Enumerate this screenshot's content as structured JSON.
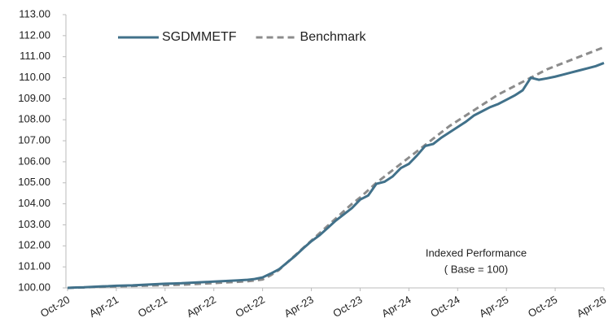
{
  "chart_data": {
    "type": "line",
    "annotation": [
      "Indexed Performance",
      "( Base = 100)"
    ],
    "legend": "upper left",
    "categories": [
      "Oct-20",
      null,
      null,
      null,
      null,
      null,
      "Apr-21",
      null,
      null,
      null,
      null,
      null,
      "Oct-21",
      null,
      null,
      null,
      null,
      null,
      "Apr-22",
      null,
      null,
      null,
      null,
      null,
      "Oct-22",
      null,
      null,
      null,
      null,
      null,
      "Apr-23",
      null,
      null,
      null,
      null,
      null,
      "Oct-23",
      null,
      null,
      null,
      null,
      null,
      "Apr-24",
      null,
      null,
      null,
      null,
      null,
      "Oct-24",
      null,
      null,
      null,
      null,
      null,
      "Apr-25",
      null,
      null,
      null,
      null,
      null,
      "Oct-25",
      null,
      null,
      null,
      null,
      null,
      "Apr-26"
    ],
    "series": [
      {
        "name": "SGDMMETF",
        "color": "#41718a",
        "style": "solid",
        "values": [
          100.0,
          100.02,
          100.03,
          100.05,
          100.07,
          100.08,
          100.1,
          100.11,
          100.12,
          100.14,
          100.16,
          100.18,
          100.2,
          100.21,
          100.22,
          100.24,
          100.26,
          100.28,
          100.3,
          100.32,
          100.34,
          100.36,
          100.38,
          100.42,
          100.5,
          100.68,
          100.88,
          101.2,
          101.52,
          101.88,
          102.22,
          102.5,
          102.85,
          103.2,
          103.5,
          103.8,
          104.2,
          104.4,
          104.95,
          105.05,
          105.3,
          105.7,
          105.9,
          106.3,
          106.75,
          106.85,
          107.15,
          107.4,
          107.65,
          107.9,
          108.2,
          108.4,
          108.6,
          108.75,
          108.95,
          109.15,
          109.4,
          110.0,
          109.9,
          109.97,
          110.05,
          110.15,
          110.25,
          110.35,
          110.45,
          110.55,
          110.7
        ]
      },
      {
        "name": "Benchmark",
        "color": "#8c8c8c",
        "style": "dashed",
        "values": [
          100.0,
          100.01,
          100.02,
          100.04,
          100.05,
          100.06,
          100.07,
          100.08,
          100.09,
          100.1,
          100.11,
          100.12,
          100.13,
          100.14,
          100.15,
          100.17,
          100.19,
          100.21,
          100.23,
          100.25,
          100.27,
          100.29,
          100.31,
          100.35,
          100.4,
          100.6,
          100.85,
          101.2,
          101.55,
          101.9,
          102.25,
          102.6,
          102.95,
          103.3,
          103.65,
          104.0,
          104.3,
          104.65,
          105.0,
          105.3,
          105.6,
          105.9,
          106.2,
          106.5,
          106.8,
          107.1,
          107.4,
          107.7,
          107.95,
          108.2,
          108.45,
          108.7,
          108.95,
          109.2,
          109.4,
          109.6,
          109.8,
          110.0,
          110.2,
          110.4,
          110.55,
          110.7,
          110.85,
          111.0,
          111.15,
          111.3,
          111.45
        ]
      }
    ],
    "ylim": [
      100,
      113
    ],
    "yticks": [
      {
        "value": 100,
        "label": "100.00"
      },
      {
        "value": 101,
        "label": "101.00"
      },
      {
        "value": 102,
        "label": "102.00"
      },
      {
        "value": 103,
        "label": "103.00"
      },
      {
        "value": 104,
        "label": "104.00"
      },
      {
        "value": 105,
        "label": "105.00"
      },
      {
        "value": 106,
        "label": "106.00"
      },
      {
        "value": 107,
        "label": "107.00"
      },
      {
        "value": 108,
        "label": "108.00"
      },
      {
        "value": 109,
        "label": "109.00"
      },
      {
        "value": 110,
        "label": "110.00"
      },
      {
        "value": 111,
        "label": "111.00"
      },
      {
        "value": 112,
        "label": "112.00"
      },
      {
        "value": 113,
        "label": "113.00"
      }
    ],
    "grid": false
  }
}
